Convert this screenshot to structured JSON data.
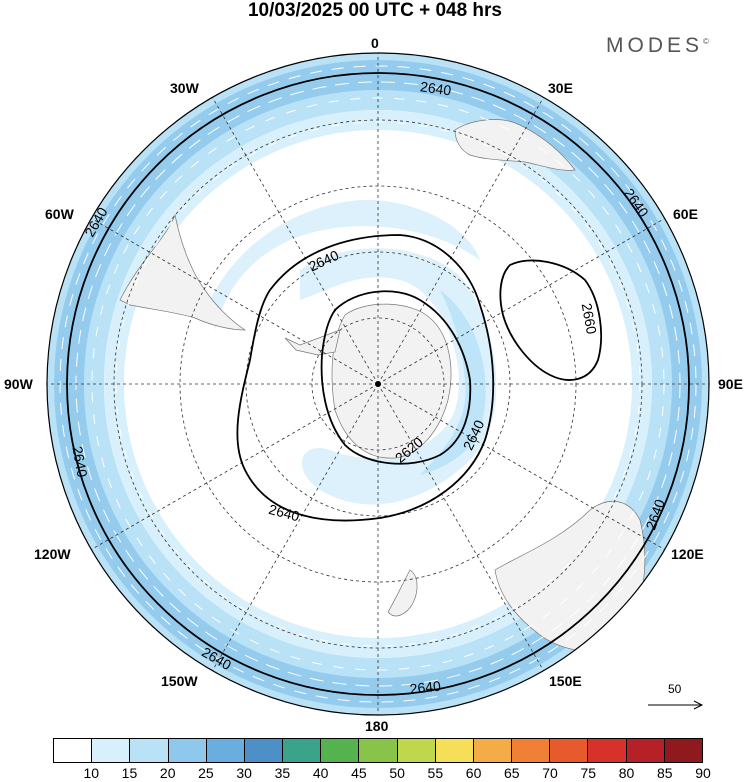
{
  "title": "10/03/2025  00 UTC  + 048 hrs",
  "brand": "MODES",
  "brand_mark": "©",
  "longitude_labels": {
    "n0": "0",
    "n30e": "30E",
    "n60e": "60E",
    "n90e": "90E",
    "n120e": "120E",
    "n150e": "150E",
    "n180": "180",
    "n150w": "150W",
    "n120w": "120W",
    "n90w": "90W",
    "n60w": "60W",
    "n30w": "30W"
  },
  "contour_labels": {
    "c1": "2640",
    "c2": "2640",
    "c3": "2640",
    "c4": "2640",
    "c5": "2640",
    "c6": "2640",
    "c7": "2640",
    "c8": "2640",
    "c9": "2640",
    "c10": "2660",
    "c11": "2620"
  },
  "reference_vector": {
    "value": "50"
  },
  "colorbar": {
    "labels": [
      "10",
      "15",
      "20",
      "25",
      "30",
      "35",
      "40",
      "45",
      "50",
      "55",
      "60",
      "65",
      "70",
      "75",
      "80",
      "85",
      "90"
    ],
    "colors": [
      "#ffffff",
      "#d8f0fb",
      "#b9e2f7",
      "#8ec8ec",
      "#6aaee0",
      "#4d90c8",
      "#3aa389",
      "#55b34f",
      "#88c34a",
      "#c0d64c",
      "#f6df58",
      "#f3ac48",
      "#ef8036",
      "#e65a2c",
      "#d6322a",
      "#b52126",
      "#8e1a1e"
    ]
  },
  "colors": {
    "contour": "#000000",
    "land": "#f2f2f2",
    "wind_light": "#d8f0fb",
    "wind_mid": "#b9e2f7",
    "wind_strong": "#8ec8ec"
  }
}
